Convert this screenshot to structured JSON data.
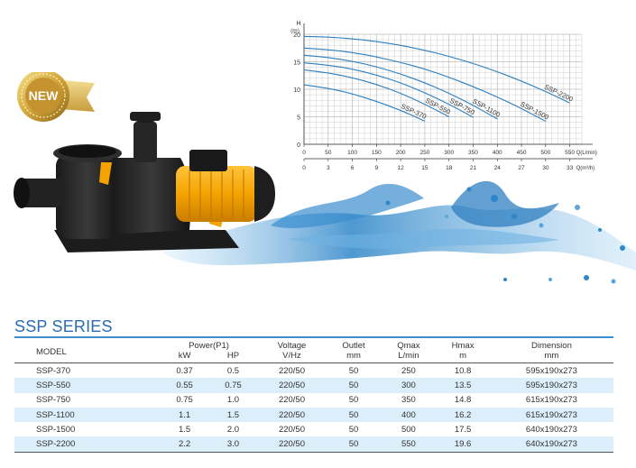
{
  "badge": {
    "text": "NEW"
  },
  "series_title": "SSP SERIES",
  "table": {
    "headers": {
      "model": "MODEL",
      "power": "Power(P1)",
      "kw": "kW",
      "hp": "HP",
      "voltage": "Voltage",
      "voltage_unit": "V/Hz",
      "outlet": "Outlet",
      "outlet_unit": "mm",
      "qmax": "Qmax",
      "qmax_unit": "L/min",
      "hmax": "Hmax",
      "hmax_unit": "m",
      "dimension": "Dimension",
      "dimension_unit": "mm"
    },
    "rows": [
      {
        "model": "SSP-370",
        "kw": "0.37",
        "hp": "0.5",
        "voltage": "220/50",
        "outlet": "50",
        "qmax": "250",
        "hmax": "10.8",
        "dimension": "595x190x273"
      },
      {
        "model": "SSP-550",
        "kw": "0.55",
        "hp": "0.75",
        "voltage": "220/50",
        "outlet": "50",
        "qmax": "300",
        "hmax": "13.5",
        "dimension": "595x190x273"
      },
      {
        "model": "SSP-750",
        "kw": "0.75",
        "hp": "1.0",
        "voltage": "220/50",
        "outlet": "50",
        "qmax": "350",
        "hmax": "14.8",
        "dimension": "615x190x273"
      },
      {
        "model": "SSP-1100",
        "kw": "1.1",
        "hp": "1.5",
        "voltage": "220/50",
        "outlet": "50",
        "qmax": "400",
        "hmax": "16.2",
        "dimension": "615x190x273"
      },
      {
        "model": "SSP-1500",
        "kw": "1.5",
        "hp": "2.0",
        "voltage": "220/50",
        "outlet": "50",
        "qmax": "500",
        "hmax": "17.5",
        "dimension": "640x190x273"
      },
      {
        "model": "SSP-2200",
        "kw": "2.2",
        "hp": "3.0",
        "voltage": "220/50",
        "outlet": "50",
        "qmax": "550",
        "hmax": "19.6",
        "dimension": "640x190x273"
      }
    ]
  },
  "chart_data": {
    "type": "line",
    "y_axis_label": "H",
    "y_axis_unit": "(m)",
    "ylim": [
      0,
      20
    ],
    "y_ticks": [
      "0",
      "5",
      "10",
      "15",
      "20"
    ],
    "x_axis_lmin_label": "Q(L/min)",
    "x_ticks_lmin": [
      "0",
      "50",
      "100",
      "150",
      "200",
      "250",
      "300",
      "350",
      "400",
      "450",
      "500",
      "550"
    ],
    "x_axis_m3h_label": "Q(m³/h)",
    "x_ticks_m3h": [
      "0",
      "3",
      "6",
      "9",
      "12",
      "15",
      "18",
      "21",
      "24",
      "27",
      "30",
      "33"
    ],
    "xlim": [
      0,
      575
    ],
    "grid": true,
    "series": [
      {
        "name": "SSP-370",
        "x": [
          0,
          50,
          100,
          150,
          200,
          250
        ],
        "y": [
          10.8,
          10.2,
          9.2,
          7.8,
          6.2,
          4.2
        ]
      },
      {
        "name": "SSP-550",
        "x": [
          0,
          50,
          100,
          150,
          200,
          250,
          300
        ],
        "y": [
          13.5,
          13.0,
          12.1,
          10.9,
          9.3,
          7.3,
          5.0
        ]
      },
      {
        "name": "SSP-750",
        "x": [
          0,
          50,
          100,
          150,
          200,
          250,
          300,
          350
        ],
        "y": [
          14.8,
          14.4,
          13.7,
          12.6,
          11.2,
          9.4,
          7.3,
          4.9
        ]
      },
      {
        "name": "SSP-1100",
        "x": [
          0,
          50,
          100,
          150,
          200,
          250,
          300,
          350,
          400
        ],
        "y": [
          16.2,
          15.8,
          15.1,
          14.1,
          12.8,
          11.2,
          9.3,
          7.1,
          4.6
        ]
      },
      {
        "name": "SSP-1500",
        "x": [
          0,
          50,
          100,
          150,
          200,
          250,
          300,
          350,
          400,
          450,
          500
        ],
        "y": [
          17.5,
          17.2,
          16.7,
          15.9,
          14.9,
          13.7,
          12.2,
          10.5,
          8.6,
          6.5,
          4.2
        ]
      },
      {
        "name": "SSP-2200",
        "x": [
          0,
          50,
          100,
          150,
          200,
          250,
          300,
          350,
          400,
          450,
          500,
          550
        ],
        "y": [
          19.6,
          19.5,
          19.2,
          18.7,
          18.0,
          17.1,
          16.0,
          14.7,
          13.2,
          11.5,
          9.6,
          7.5
        ]
      }
    ],
    "colors": {
      "curve": "#2a7fc2",
      "grid": "#bbbbbb"
    }
  }
}
